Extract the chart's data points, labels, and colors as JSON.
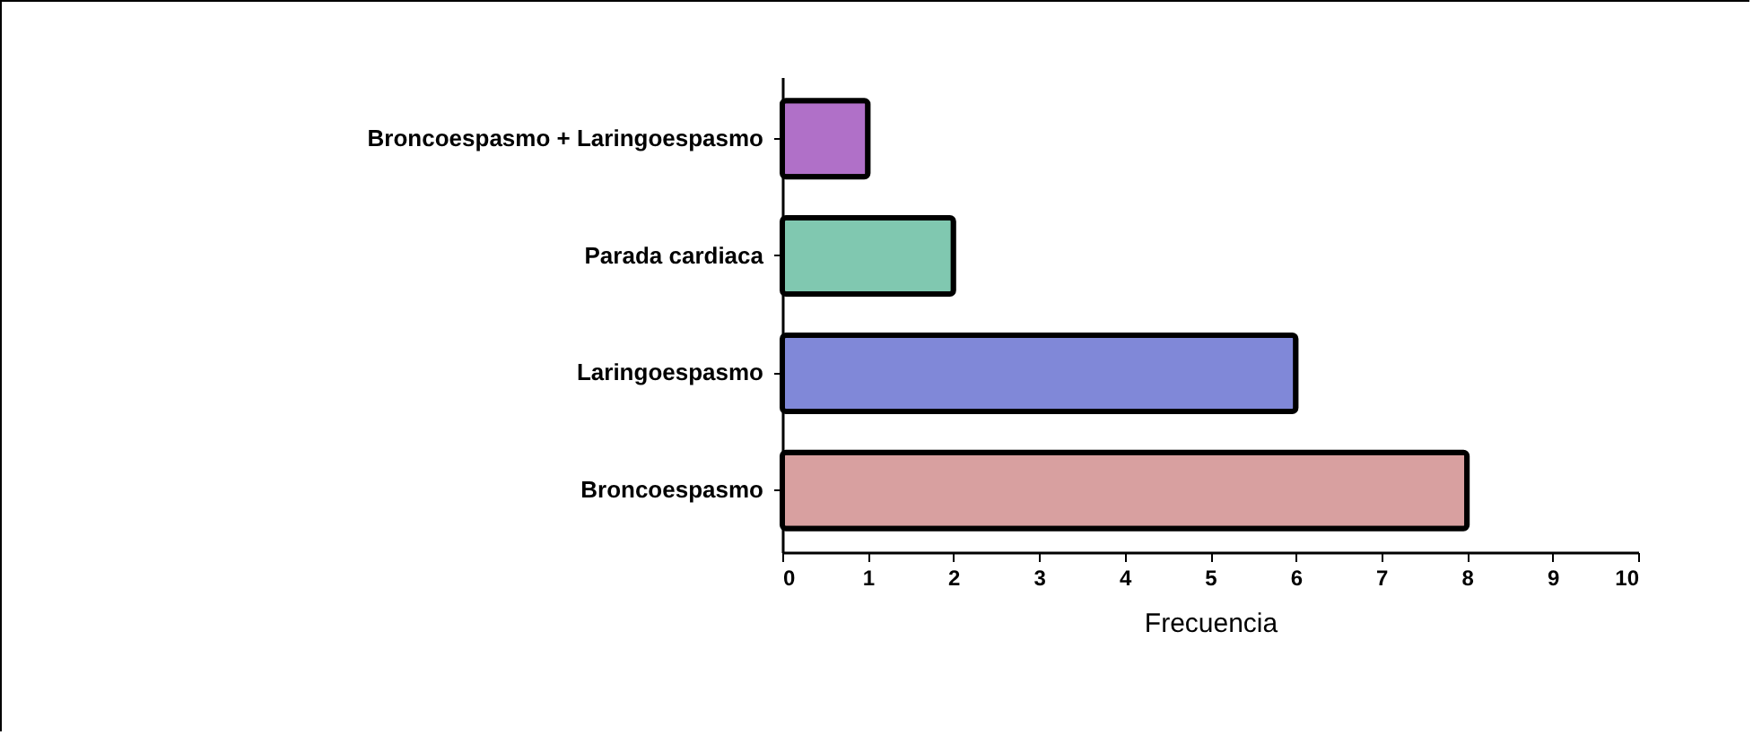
{
  "chart_data": {
    "type": "bar",
    "orientation": "horizontal",
    "xlabel": "Frecuencia",
    "categories": [
      "Broncoespasmo + Laringoespasmo",
      "Parada cardiaca",
      "Laringoespasmo",
      "Broncoespasmo"
    ],
    "values": [
      1,
      2,
      6,
      8
    ],
    "colors": [
      "#b070c8",
      "#80c8b0",
      "#8088d8",
      "#d8a0a0"
    ],
    "xlim": [
      0,
      10
    ],
    "xticks": [
      0,
      1,
      2,
      3,
      4,
      5,
      6,
      7,
      8,
      9,
      10
    ],
    "grid": false
  }
}
